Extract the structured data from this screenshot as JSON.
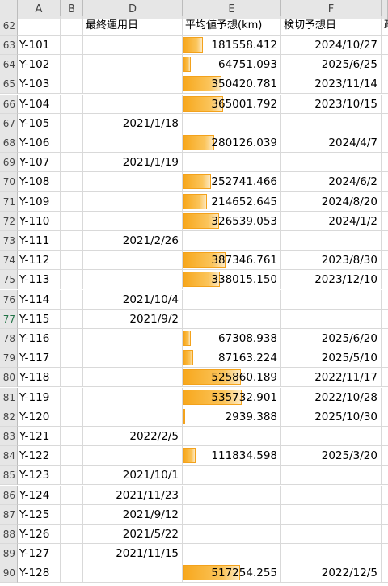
{
  "columns": [
    "A",
    "B",
    "D",
    "E",
    "F"
  ],
  "header_row": {
    "num": "62",
    "a": "",
    "b": "",
    "d": "最終運用日",
    "e": "平均値予想(km)",
    "f": "検切予想日",
    "g": "政"
  },
  "e_max": 535732.901,
  "rows": [
    {
      "num": "63",
      "a": "Y-101",
      "d": "",
      "e": "181558.412",
      "e_num": 181558.412,
      "f": "2024/10/27"
    },
    {
      "num": "64",
      "a": "Y-102",
      "d": "",
      "e": "64751.093",
      "e_num": 64751.093,
      "f": "2025/6/25"
    },
    {
      "num": "65",
      "a": "Y-103",
      "d": "",
      "e": "350420.781",
      "e_num": 350420.781,
      "f": "2023/11/14"
    },
    {
      "num": "66",
      "a": "Y-104",
      "d": "",
      "e": "365001.792",
      "e_num": 365001.792,
      "f": "2023/10/15"
    },
    {
      "num": "67",
      "a": "Y-105",
      "d": "2021/1/18",
      "e": "",
      "e_num": 0,
      "f": ""
    },
    {
      "num": "68",
      "a": "Y-106",
      "d": "",
      "e": "280126.039",
      "e_num": 280126.039,
      "f": "2024/4/7"
    },
    {
      "num": "69",
      "a": "Y-107",
      "d": "2021/1/19",
      "e": "",
      "e_num": 0,
      "f": ""
    },
    {
      "num": "70",
      "a": "Y-108",
      "d": "",
      "e": "252741.466",
      "e_num": 252741.466,
      "f": "2024/6/2"
    },
    {
      "num": "71",
      "a": "Y-109",
      "d": "",
      "e": "214652.645",
      "e_num": 214652.645,
      "f": "2024/8/20"
    },
    {
      "num": "72",
      "a": "Y-110",
      "d": "",
      "e": "326539.053",
      "e_num": 326539.053,
      "f": "2024/1/2"
    },
    {
      "num": "73",
      "a": "Y-111",
      "d": "2021/2/26",
      "e": "",
      "e_num": 0,
      "f": ""
    },
    {
      "num": "74",
      "a": "Y-112",
      "d": "",
      "e": "387346.761",
      "e_num": 387346.761,
      "f": "2023/8/30"
    },
    {
      "num": "75",
      "a": "Y-113",
      "d": "",
      "e": "338015.150",
      "e_num": 338015.15,
      "f": "2023/12/10"
    },
    {
      "num": "76",
      "a": "Y-114",
      "d": "2021/10/4",
      "e": "",
      "e_num": 0,
      "f": ""
    },
    {
      "num": "77",
      "a": "Y-115",
      "d": "2021/9/2",
      "e": "",
      "e_num": 0,
      "f": "",
      "selected": true
    },
    {
      "num": "78",
      "a": "Y-116",
      "d": "",
      "e": "67308.938",
      "e_num": 67308.938,
      "f": "2025/6/20"
    },
    {
      "num": "79",
      "a": "Y-117",
      "d": "",
      "e": "87163.224",
      "e_num": 87163.224,
      "f": "2025/5/10"
    },
    {
      "num": "80",
      "a": "Y-118",
      "d": "",
      "e": "525860.189",
      "e_num": 525860.189,
      "f": "2022/11/17"
    },
    {
      "num": "81",
      "a": "Y-119",
      "d": "",
      "e": "535732.901",
      "e_num": 535732.901,
      "f": "2022/10/28"
    },
    {
      "num": "82",
      "a": "Y-120",
      "d": "",
      "e": "2939.388",
      "e_num": 2939.388,
      "f": "2025/10/30"
    },
    {
      "num": "83",
      "a": "Y-121",
      "d": "2022/2/5",
      "e": "",
      "e_num": 0,
      "f": ""
    },
    {
      "num": "84",
      "a": "Y-122",
      "d": "",
      "e": "111834.598",
      "e_num": 111834.598,
      "f": "2025/3/20"
    },
    {
      "num": "85",
      "a": "Y-123",
      "d": "2021/10/1",
      "e": "",
      "e_num": 0,
      "f": ""
    },
    {
      "num": "86",
      "a": "Y-124",
      "d": "2021/11/23",
      "e": "",
      "e_num": 0,
      "f": ""
    },
    {
      "num": "87",
      "a": "Y-125",
      "d": "2021/9/12",
      "e": "",
      "e_num": 0,
      "f": ""
    },
    {
      "num": "88",
      "a": "Y-126",
      "d": "2021/5/22",
      "e": "",
      "e_num": 0,
      "f": ""
    },
    {
      "num": "89",
      "a": "Y-127",
      "d": "2021/11/15",
      "e": "",
      "e_num": 0,
      "f": ""
    },
    {
      "num": "90",
      "a": "Y-128",
      "d": "",
      "e": "517254.255",
      "e_num": 517254.255,
      "f": "2022/12/5"
    }
  ],
  "colors": {
    "bar_start": "#f7a81e",
    "bar_end": "#fde9c2",
    "grid": "#d9d9d9",
    "header_bg": "#e6e6e6",
    "selected_row_header": "#217346"
  }
}
